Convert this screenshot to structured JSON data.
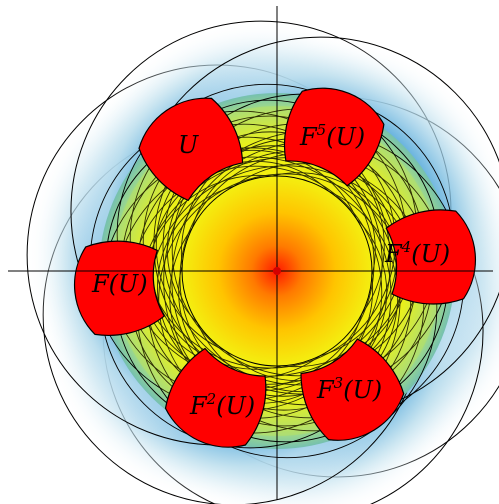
{
  "figure": {
    "labels": {
      "U": "U",
      "F1": "F(U)",
      "F2_base": "F",
      "F2_sup": "2",
      "F2_arg": "(U)",
      "F3_base": "F",
      "F3_sup": "3",
      "F3_arg": "(U)",
      "F4_base": "F",
      "F4_sup": "4",
      "F4_arg": "(U)",
      "F5_base": "F",
      "F5_sup": "5",
      "F5_arg": "(U)"
    },
    "iterate_count": 6,
    "colors": {
      "region": "#ff0000",
      "outer_blue": "#3a9bd6",
      "green": "#8fd08a",
      "yellow": "#f2f20a",
      "orange": "#ffb000",
      "center": "#ff2000",
      "outer_fade": "#ffffff"
    }
  }
}
